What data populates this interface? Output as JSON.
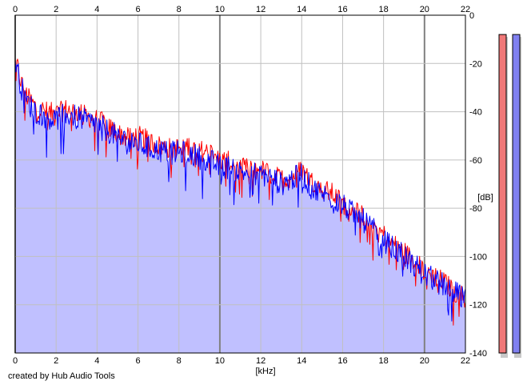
{
  "chart_data": {
    "type": "area",
    "x_unit": "[kHz]",
    "y_unit": "[dB]",
    "xlim": [
      0,
      22
    ],
    "ylim": [
      -140,
      0
    ],
    "x_ticks": [
      0,
      2,
      4,
      6,
      8,
      10,
      12,
      14,
      16,
      18,
      20,
      22
    ],
    "x_tick_labels": [
      "0",
      "2",
      "4",
      "6",
      "8",
      "10",
      "12",
      "14",
      "16",
      "18",
      "20",
      "22"
    ],
    "y_ticks": [
      0,
      -20,
      -40,
      -60,
      -80,
      -100,
      -120,
      -140
    ],
    "y_tick_labels": [
      "0",
      "-20",
      "-40",
      "-60",
      "-80",
      "-100",
      "-120",
      "-140"
    ],
    "grid": true,
    "series": [
      {
        "color": "#ff0000",
        "x": [
          0,
          0.1,
          0.3,
          0.6,
          1,
          1.5,
          2,
          2.5,
          3,
          3.5,
          4,
          4.5,
          5,
          5.5,
          6,
          6.5,
          7,
          7.5,
          8,
          8.5,
          9,
          9.5,
          10,
          10.5,
          11,
          11.5,
          12,
          12.5,
          13,
          13.5,
          14,
          14.5,
          15,
          15.5,
          16,
          16.5,
          17,
          17.5,
          18,
          18.5,
          19,
          19.5,
          20,
          20.5,
          21,
          21.5,
          22
        ],
        "y": [
          -19,
          -21,
          -28,
          -34,
          -38,
          -40,
          -41,
          -39,
          -40,
          -42,
          -43,
          -46,
          -49,
          -51,
          -50,
          -52,
          -54,
          -55,
          -55,
          -54,
          -56,
          -57,
          -60,
          -61,
          -63,
          -64,
          -64,
          -66,
          -68,
          -67,
          -64,
          -69,
          -72,
          -74,
          -78,
          -80,
          -83,
          -87,
          -91,
          -95,
          -98,
          -102,
          -106,
          -108,
          -111,
          -115,
          -117
        ]
      },
      {
        "color": "#0000ff",
        "x": [
          0,
          0.1,
          0.3,
          0.6,
          1,
          1.5,
          2,
          2.5,
          3,
          3.5,
          4,
          4.5,
          5,
          5.5,
          6,
          6.5,
          7,
          7.5,
          8,
          8.5,
          9,
          9.5,
          10,
          10.5,
          11,
          11.5,
          12,
          12.5,
          13,
          13.5,
          14,
          14.5,
          15,
          15.5,
          16,
          16.5,
          17,
          17.5,
          18,
          18.5,
          19,
          19.5,
          20,
          20.5,
          21,
          21.5,
          22
        ],
        "y": [
          -18,
          -22,
          -30,
          -36,
          -40,
          -42,
          -43,
          -41,
          -42,
          -44,
          -45,
          -48,
          -50,
          -53,
          -53,
          -55,
          -56,
          -57,
          -57,
          -57,
          -59,
          -60,
          -63,
          -63,
          -65,
          -65,
          -66,
          -67,
          -70,
          -68,
          -66,
          -72,
          -74,
          -76,
          -79,
          -82,
          -85,
          -89,
          -93,
          -97,
          -100,
          -103,
          -107,
          -110,
          -112,
          -115,
          -118
        ]
      }
    ],
    "level_meters": [
      {
        "color": "#f07878",
        "level_db": -8
      },
      {
        "color": "#8080f0",
        "level_db": -8
      }
    ]
  },
  "colors": {
    "fill": "#c0c0ff",
    "grid": "#c0c0c0",
    "grid_major": "#808080",
    "left_channel": "#ff0000",
    "right_channel": "#0000ff"
  },
  "footer": {
    "credit": "created by Hub Audio Tools"
  }
}
